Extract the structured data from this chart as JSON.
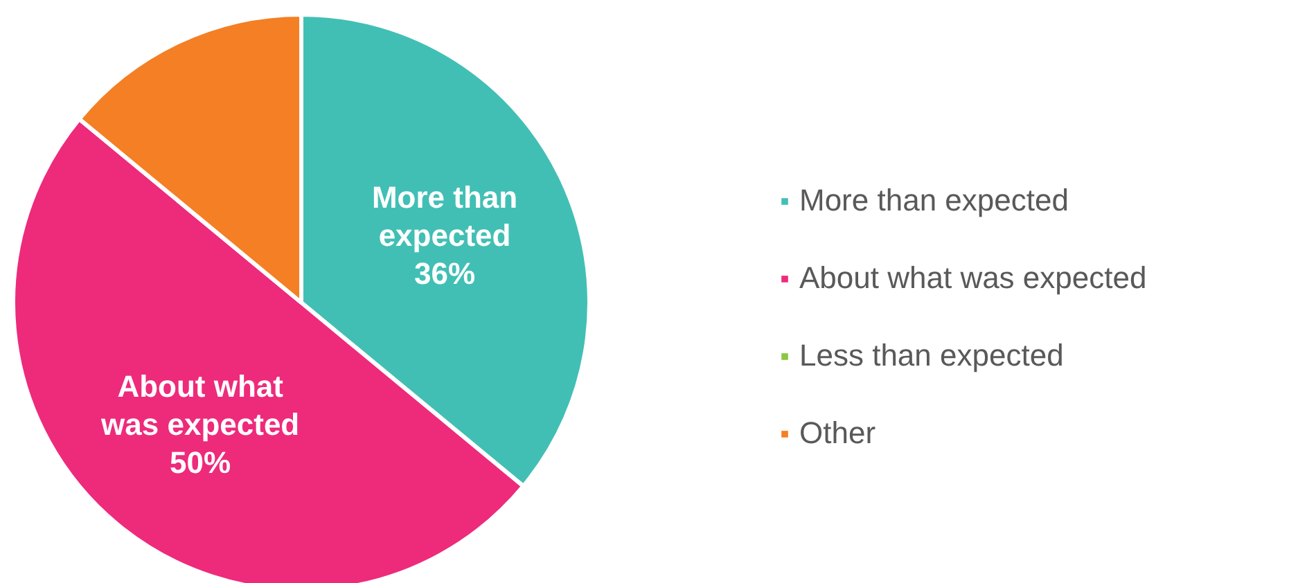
{
  "chart_data": {
    "type": "pie",
    "categories": [
      "More than expected",
      "About what was expected",
      "Less than expected",
      "Other"
    ],
    "values": [
      36,
      50,
      0,
      14
    ],
    "colors": [
      "#42bfb5",
      "#ee2a7b",
      "#8dc63f",
      "#f47f24"
    ],
    "value_labels": [
      "36%",
      "50%",
      null,
      null
    ],
    "legend": "right"
  }
}
